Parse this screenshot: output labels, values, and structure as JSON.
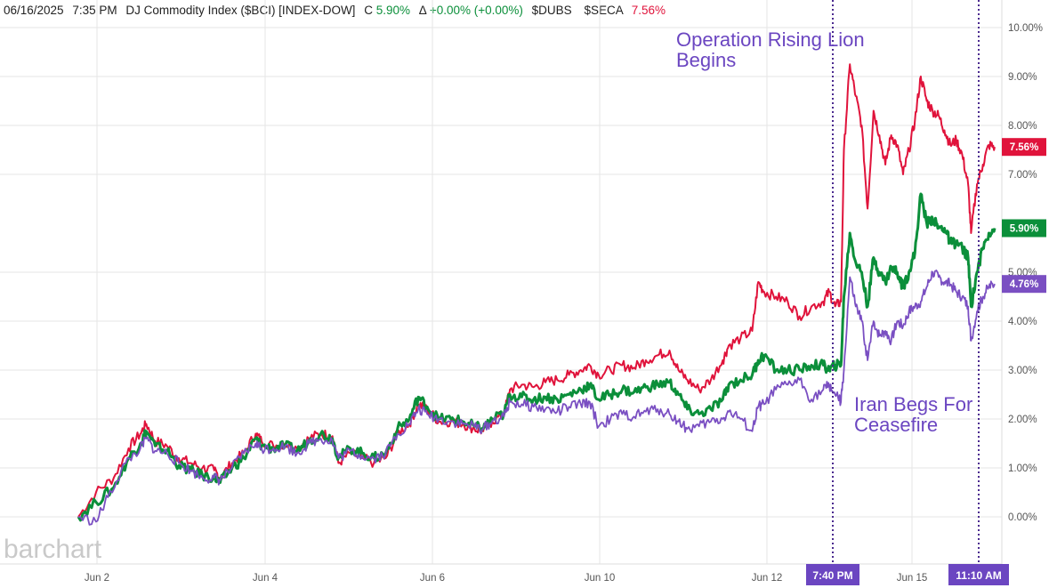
{
  "header": {
    "date": "06/16/2025",
    "time": "7:35 PM",
    "symbol_desc": "DJ Commodity Index ($BCI) [INDEX-DOW]",
    "close_label": "C",
    "close_value": "5.90%",
    "change_label": "Δ",
    "change_value": "+0.00% (+0.00%)",
    "symbol2": "$DUBS",
    "symbol3": "$SECA",
    "symbol3_value": "7.56%"
  },
  "logo_text": "barchart",
  "annotations": {
    "event1": [
      "Operation Rising Lion",
      "Begins"
    ],
    "event2": [
      "Iran Begs For",
      "Ceasefire"
    ],
    "event1_time": "7:40 PM",
    "event2_time": "11:10 AM"
  },
  "colors": {
    "bci": "#0b8f3a",
    "dubs": "#7a4fc2",
    "seca": "#e0133b",
    "annotation": "#6b46c1",
    "vline": "#4b2a8f",
    "grid": "#e6e6e6"
  },
  "chart_data": {
    "type": "line",
    "x_tick_labels": [
      "Jun 2",
      "Jun 4",
      "Jun 6",
      "Jun 10",
      "Jun 12",
      "Jun 15"
    ],
    "y_tick_labels": [
      "0.00%",
      "1.00%",
      "2.00%",
      "3.00%",
      "4.00%",
      "5.00%",
      "7.00%",
      "8.00%",
      "9.00%",
      "10.00%"
    ],
    "ylim": [
      -0.8,
      10.6
    ],
    "grid": true,
    "series": [
      {
        "name": "$SECA",
        "color": "#e0133b",
        "end_label": "7.56%",
        "points": [
          [
            0,
            0.0
          ],
          [
            0.3,
            0.5
          ],
          [
            0.6,
            0.8
          ],
          [
            0.85,
            1.4
          ],
          [
            1.05,
            1.7
          ],
          [
            1.15,
            1.9
          ],
          [
            1.3,
            1.55
          ],
          [
            1.5,
            1.45
          ],
          [
            1.7,
            1.2
          ],
          [
            1.9,
            1.1
          ],
          [
            2.1,
            1.0
          ],
          [
            2.3,
            0.95
          ],
          [
            2.4,
            0.8
          ],
          [
            2.6,
            1.1
          ],
          [
            2.8,
            1.3
          ],
          [
            3.0,
            1.7
          ],
          [
            3.1,
            1.55
          ],
          [
            3.3,
            1.45
          ],
          [
            3.5,
            1.5
          ],
          [
            3.7,
            1.4
          ],
          [
            3.9,
            1.6
          ],
          [
            4.1,
            1.7
          ],
          [
            4.3,
            1.65
          ],
          [
            4.4,
            1.1
          ],
          [
            4.6,
            1.3
          ],
          [
            4.8,
            1.2
          ],
          [
            5.0,
            1.1
          ],
          [
            5.2,
            1.2
          ],
          [
            5.4,
            1.7
          ],
          [
            5.6,
            1.9
          ],
          [
            5.75,
            2.3
          ],
          [
            5.9,
            2.2
          ],
          [
            6.1,
            1.95
          ],
          [
            6.3,
            1.95
          ],
          [
            6.5,
            1.9
          ],
          [
            6.7,
            1.8
          ],
          [
            6.85,
            1.75
          ],
          [
            7.0,
            1.95
          ],
          [
            7.2,
            2.1
          ],
          [
            7.3,
            2.6
          ],
          [
            7.5,
            2.7
          ],
          [
            7.7,
            2.65
          ],
          [
            7.9,
            2.75
          ],
          [
            8.1,
            2.8
          ],
          [
            8.3,
            2.9
          ],
          [
            8.5,
            3.0
          ],
          [
            8.65,
            3.1
          ],
          [
            8.8,
            2.9
          ],
          [
            9.0,
            3.0
          ],
          [
            9.2,
            3.1
          ],
          [
            9.4,
            3.05
          ],
          [
            9.6,
            3.2
          ],
          [
            9.8,
            3.3
          ],
          [
            10.0,
            3.4
          ],
          [
            10.15,
            3.0
          ],
          [
            10.3,
            2.8
          ],
          [
            10.5,
            2.6
          ],
          [
            10.7,
            2.8
          ],
          [
            10.9,
            3.2
          ],
          [
            11.0,
            3.5
          ],
          [
            11.2,
            3.65
          ],
          [
            11.4,
            3.8
          ],
          [
            11.5,
            4.8
          ],
          [
            11.6,
            4.6
          ],
          [
            11.8,
            4.5
          ],
          [
            12.0,
            4.4
          ],
          [
            12.2,
            4.1
          ],
          [
            12.4,
            4.3
          ],
          [
            12.6,
            4.4
          ],
          [
            12.7,
            4.6
          ],
          [
            12.8,
            4.3
          ],
          [
            12.9,
            4.4
          ],
          [
            12.95,
            7.5
          ],
          [
            13.05,
            9.25
          ],
          [
            13.15,
            8.6
          ],
          [
            13.25,
            8.0
          ],
          [
            13.35,
            6.3
          ],
          [
            13.45,
            8.3
          ],
          [
            13.55,
            7.8
          ],
          [
            13.65,
            7.2
          ],
          [
            13.75,
            7.8
          ],
          [
            13.85,
            7.6
          ],
          [
            13.95,
            7.0
          ],
          [
            14.05,
            7.5
          ],
          [
            14.15,
            8.1
          ],
          [
            14.25,
            9.0
          ],
          [
            14.35,
            8.5
          ],
          [
            14.45,
            8.3
          ],
          [
            14.55,
            8.2
          ],
          [
            14.65,
            7.9
          ],
          [
            14.75,
            7.6
          ],
          [
            14.85,
            7.7
          ],
          [
            14.95,
            7.4
          ],
          [
            15.05,
            6.8
          ],
          [
            15.1,
            5.8
          ],
          [
            15.2,
            6.8
          ],
          [
            15.3,
            7.2
          ],
          [
            15.4,
            7.6
          ],
          [
            15.5,
            7.56
          ]
        ]
      },
      {
        "name": "$BCI",
        "color": "#0b8f3a",
        "end_label": "5.90%",
        "points": [
          [
            0,
            0.0
          ],
          [
            0.3,
            0.3
          ],
          [
            0.6,
            0.6
          ],
          [
            0.85,
            1.2
          ],
          [
            1.05,
            1.5
          ],
          [
            1.15,
            1.75
          ],
          [
            1.3,
            1.45
          ],
          [
            1.5,
            1.35
          ],
          [
            1.7,
            1.05
          ],
          [
            1.9,
            0.95
          ],
          [
            2.1,
            0.85
          ],
          [
            2.3,
            0.8
          ],
          [
            2.4,
            0.7
          ],
          [
            2.6,
            1.0
          ],
          [
            2.8,
            1.2
          ],
          [
            3.0,
            1.6
          ],
          [
            3.1,
            1.45
          ],
          [
            3.3,
            1.4
          ],
          [
            3.5,
            1.45
          ],
          [
            3.7,
            1.35
          ],
          [
            3.9,
            1.55
          ],
          [
            4.1,
            1.7
          ],
          [
            4.3,
            1.6
          ],
          [
            4.4,
            1.2
          ],
          [
            4.6,
            1.4
          ],
          [
            4.8,
            1.3
          ],
          [
            5.0,
            1.2
          ],
          [
            5.2,
            1.3
          ],
          [
            5.4,
            1.8
          ],
          [
            5.6,
            2.0
          ],
          [
            5.75,
            2.45
          ],
          [
            5.9,
            2.25
          ],
          [
            6.1,
            2.0
          ],
          [
            6.3,
            2.0
          ],
          [
            6.5,
            1.95
          ],
          [
            6.7,
            1.85
          ],
          [
            6.85,
            1.8
          ],
          [
            7.0,
            2.0
          ],
          [
            7.2,
            2.1
          ],
          [
            7.3,
            2.5
          ],
          [
            7.5,
            2.45
          ],
          [
            7.7,
            2.4
          ],
          [
            7.9,
            2.45
          ],
          [
            8.1,
            2.4
          ],
          [
            8.3,
            2.5
          ],
          [
            8.5,
            2.6
          ],
          [
            8.65,
            2.7
          ],
          [
            8.8,
            2.4
          ],
          [
            9.0,
            2.5
          ],
          [
            9.2,
            2.6
          ],
          [
            9.4,
            2.55
          ],
          [
            9.6,
            2.65
          ],
          [
            9.8,
            2.7
          ],
          [
            10.0,
            2.75
          ],
          [
            10.15,
            2.5
          ],
          [
            10.3,
            2.2
          ],
          [
            10.5,
            2.1
          ],
          [
            10.7,
            2.2
          ],
          [
            10.9,
            2.4
          ],
          [
            11.0,
            2.7
          ],
          [
            11.2,
            2.8
          ],
          [
            11.4,
            2.9
          ],
          [
            11.5,
            3.2
          ],
          [
            11.6,
            3.3
          ],
          [
            11.8,
            3.0
          ],
          [
            12.0,
            3.0
          ],
          [
            12.2,
            3.0
          ],
          [
            12.4,
            3.1
          ],
          [
            12.6,
            3.1
          ],
          [
            12.7,
            3.0
          ],
          [
            12.8,
            3.1
          ],
          [
            12.9,
            3.1
          ],
          [
            12.95,
            4.5
          ],
          [
            13.05,
            5.8
          ],
          [
            13.15,
            5.2
          ],
          [
            13.25,
            5.0
          ],
          [
            13.35,
            4.3
          ],
          [
            13.45,
            5.3
          ],
          [
            13.55,
            5.0
          ],
          [
            13.65,
            4.8
          ],
          [
            13.75,
            5.1
          ],
          [
            13.85,
            5.0
          ],
          [
            13.95,
            4.7
          ],
          [
            14.05,
            5.0
          ],
          [
            14.15,
            5.4
          ],
          [
            14.25,
            6.6
          ],
          [
            14.35,
            6.0
          ],
          [
            14.45,
            6.1
          ],
          [
            14.55,
            5.9
          ],
          [
            14.65,
            5.9
          ],
          [
            14.75,
            5.6
          ],
          [
            14.85,
            5.6
          ],
          [
            14.95,
            5.5
          ],
          [
            15.05,
            5.3
          ],
          [
            15.1,
            4.3
          ],
          [
            15.2,
            5.0
          ],
          [
            15.3,
            5.5
          ],
          [
            15.4,
            5.8
          ],
          [
            15.5,
            5.9
          ]
        ]
      },
      {
        "name": "$DUBS",
        "color": "#7a4fc2",
        "end_label": "4.76%",
        "points": [
          [
            0,
            0.0
          ],
          [
            0.3,
            -0.1
          ],
          [
            0.5,
            0.4
          ],
          [
            0.8,
            1.1
          ],
          [
            1.05,
            1.4
          ],
          [
            1.15,
            1.6
          ],
          [
            1.3,
            1.35
          ],
          [
            1.5,
            1.3
          ],
          [
            1.7,
            1.1
          ],
          [
            1.9,
            0.95
          ],
          [
            2.1,
            0.8
          ],
          [
            2.3,
            0.8
          ],
          [
            2.4,
            0.75
          ],
          [
            2.6,
            1.0
          ],
          [
            2.8,
            1.3
          ],
          [
            3.0,
            1.5
          ],
          [
            3.1,
            1.4
          ],
          [
            3.3,
            1.4
          ],
          [
            3.5,
            1.45
          ],
          [
            3.7,
            1.3
          ],
          [
            3.9,
            1.5
          ],
          [
            4.1,
            1.6
          ],
          [
            4.3,
            1.55
          ],
          [
            4.4,
            1.2
          ],
          [
            4.6,
            1.35
          ],
          [
            4.8,
            1.25
          ],
          [
            5.0,
            1.2
          ],
          [
            5.2,
            1.3
          ],
          [
            5.4,
            1.7
          ],
          [
            5.6,
            1.9
          ],
          [
            5.75,
            2.2
          ],
          [
            5.9,
            2.1
          ],
          [
            6.1,
            2.0
          ],
          [
            6.3,
            1.95
          ],
          [
            6.5,
            1.9
          ],
          [
            6.7,
            1.85
          ],
          [
            6.85,
            1.8
          ],
          [
            7.0,
            1.95
          ],
          [
            7.2,
            2.05
          ],
          [
            7.3,
            2.35
          ],
          [
            7.5,
            2.3
          ],
          [
            7.7,
            2.25
          ],
          [
            7.9,
            2.2
          ],
          [
            8.1,
            2.15
          ],
          [
            8.3,
            2.25
          ],
          [
            8.5,
            2.3
          ],
          [
            8.65,
            2.35
          ],
          [
            8.8,
            1.85
          ],
          [
            9.0,
            2.0
          ],
          [
            9.2,
            2.1
          ],
          [
            9.4,
            2.05
          ],
          [
            9.6,
            2.15
          ],
          [
            9.8,
            2.2
          ],
          [
            10.0,
            2.1
          ],
          [
            10.15,
            1.95
          ],
          [
            10.3,
            1.8
          ],
          [
            10.5,
            1.85
          ],
          [
            10.7,
            1.95
          ],
          [
            10.9,
            2.0
          ],
          [
            11.0,
            2.15
          ],
          [
            11.2,
            2.0
          ],
          [
            11.4,
            1.75
          ],
          [
            11.5,
            2.25
          ],
          [
            11.6,
            2.3
          ],
          [
            11.8,
            2.6
          ],
          [
            12.0,
            2.7
          ],
          [
            12.2,
            2.8
          ],
          [
            12.4,
            2.4
          ],
          [
            12.6,
            2.6
          ],
          [
            12.7,
            2.7
          ],
          [
            12.8,
            2.5
          ],
          [
            12.9,
            2.35
          ],
          [
            12.95,
            3.0
          ],
          [
            13.05,
            4.9
          ],
          [
            13.15,
            4.3
          ],
          [
            13.25,
            4.0
          ],
          [
            13.35,
            3.2
          ],
          [
            13.45,
            4.0
          ],
          [
            13.55,
            3.7
          ],
          [
            13.65,
            3.8
          ],
          [
            13.75,
            3.6
          ],
          [
            13.85,
            4.0
          ],
          [
            13.95,
            3.9
          ],
          [
            14.05,
            4.2
          ],
          [
            14.15,
            4.3
          ],
          [
            14.25,
            4.4
          ],
          [
            14.35,
            4.7
          ],
          [
            14.45,
            5.0
          ],
          [
            14.55,
            4.9
          ],
          [
            14.65,
            4.8
          ],
          [
            14.75,
            4.75
          ],
          [
            14.85,
            4.6
          ],
          [
            14.95,
            4.5
          ],
          [
            15.05,
            4.3
          ],
          [
            15.1,
            3.6
          ],
          [
            15.2,
            4.2
          ],
          [
            15.3,
            4.5
          ],
          [
            15.4,
            4.7
          ],
          [
            15.5,
            4.76
          ]
        ]
      }
    ]
  }
}
